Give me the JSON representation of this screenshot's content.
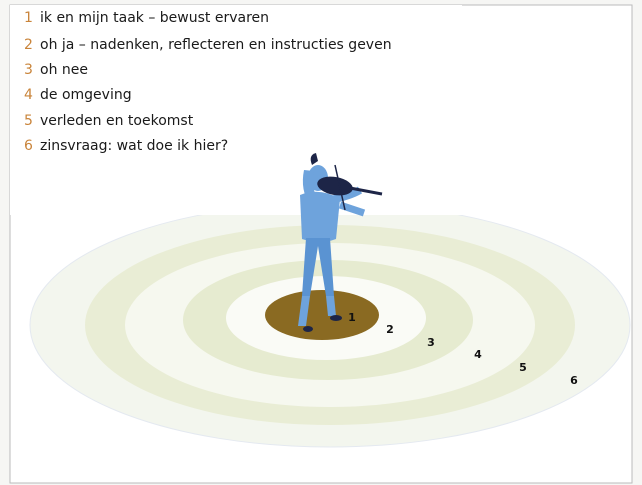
{
  "items": [
    {
      "number": "1",
      "text": "ik en mijn taak – bewust ervaren"
    },
    {
      "number": "2",
      "text": "oh ja – nadenken, reflecteren en instructies geven"
    },
    {
      "number": "3",
      "text": "oh nee"
    },
    {
      "number": "4",
      "text": "de omgeving"
    },
    {
      "number": "5",
      "text": "verleden en toekomst"
    },
    {
      "number": "6",
      "text": "zinsvraag: wat doe ik hier?"
    }
  ],
  "rings": [
    "1",
    "2",
    "3",
    "4",
    "5",
    "6"
  ]
}
